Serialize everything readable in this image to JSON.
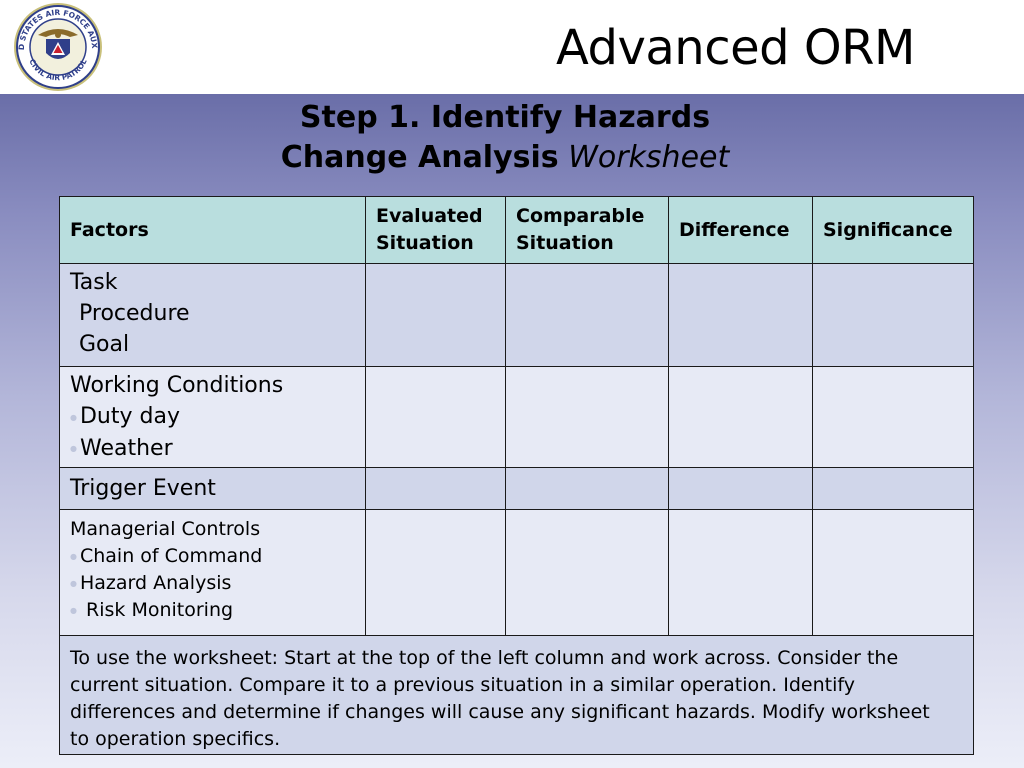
{
  "header": {
    "title": "Advanced ORM",
    "logo_text_top": "UNITED STATES AIR FORCE AUXILIARY",
    "logo_text_bottom": "CIVIL AIR PATROL"
  },
  "subtitle": {
    "line1": "Step 1. Identify Hazards",
    "line2_bold": "Change Analysis",
    "line2_italic": "Worksheet"
  },
  "table": {
    "headers": [
      "Factors",
      "Evaluated Situation",
      "Comparable Situation",
      "Difference",
      "Significance"
    ],
    "rows": [
      {
        "title": "Task",
        "items": [
          "Procedure",
          "Goal"
        ]
      },
      {
        "title": "Working Conditions",
        "items": [
          "Duty day",
          "Weather"
        ]
      },
      {
        "title": "Trigger Event",
        "items": []
      },
      {
        "title": "Managerial Controls",
        "items": [
          "Chain of Command",
          "Hazard Analysis",
          "Risk Monitoring"
        ]
      }
    ],
    "note": "To use the worksheet: Start at the  top of the left column  and work across. Consider the current situation. Compare it to a previous situation in a similar operation.  Identify differences and determine if changes will cause any significant hazards. Modify worksheet to operation specifics."
  },
  "colors": {
    "header_row": "#b9dede",
    "row_dark": "#d0d6ea",
    "row_light": "#e7eaf5",
    "band_top": "#6a6ea8"
  }
}
